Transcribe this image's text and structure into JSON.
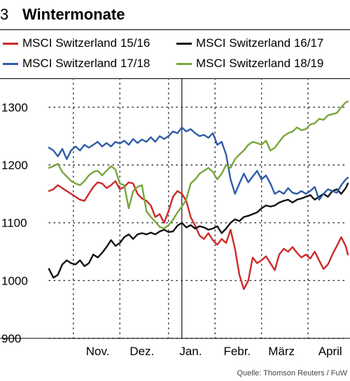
{
  "header": {
    "number": "3",
    "title": "Wintermonate"
  },
  "source": "Quelle: Thomson Reuters / FuW",
  "colors": {
    "red": "#cc2a2a",
    "black": "#111111",
    "blue": "#2f5da8",
    "green": "#78a63a"
  },
  "chart_data": {
    "type": "line",
    "title": "Wintermonate",
    "xlabel": "",
    "ylabel": "",
    "ylim": [
      900,
      1350
    ],
    "yticks": [
      900,
      1000,
      1100,
      1200,
      1300
    ],
    "xlim": [
      0,
      135
    ],
    "month_ticks": [
      {
        "label": "Nov.",
        "x": 22
      },
      {
        "label": "Dez.",
        "x": 42
      },
      {
        "label": "Jan.",
        "x": 64
      },
      {
        "label": "Febr.",
        "x": 85
      },
      {
        "label": "März",
        "x": 105
      },
      {
        "label": "April",
        "x": 127
      }
    ],
    "vgrid_x": [
      11,
      32,
      54,
      75,
      96,
      117
    ],
    "year_boundary_x": 60,
    "series": [
      {
        "name": "MSCI Switzerland 15/16",
        "color": "red",
        "points": [
          [
            0,
            1155
          ],
          [
            2,
            1158
          ],
          [
            4,
            1165
          ],
          [
            6,
            1160
          ],
          [
            8,
            1155
          ],
          [
            10,
            1150
          ],
          [
            12,
            1145
          ],
          [
            14,
            1140
          ],
          [
            16,
            1138
          ],
          [
            18,
            1150
          ],
          [
            20,
            1162
          ],
          [
            22,
            1170
          ],
          [
            24,
            1168
          ],
          [
            26,
            1160
          ],
          [
            28,
            1165
          ],
          [
            30,
            1172
          ],
          [
            32,
            1158
          ],
          [
            34,
            1162
          ],
          [
            36,
            1170
          ],
          [
            38,
            1168
          ],
          [
            40,
            1150
          ],
          [
            42,
            1142
          ],
          [
            44,
            1138
          ],
          [
            46,
            1130
          ],
          [
            48,
            1110
          ],
          [
            50,
            1115
          ],
          [
            52,
            1100
          ],
          [
            54,
            1120
          ],
          [
            56,
            1145
          ],
          [
            58,
            1155
          ],
          [
            60,
            1150
          ],
          [
            62,
            1138
          ],
          [
            64,
            1110
          ],
          [
            66,
            1095
          ],
          [
            68,
            1078
          ],
          [
            70,
            1072
          ],
          [
            72,
            1082
          ],
          [
            74,
            1070
          ],
          [
            76,
            1062
          ],
          [
            78,
            1072
          ],
          [
            80,
            1065
          ],
          [
            82,
            1088
          ],
          [
            84,
            1055
          ],
          [
            86,
            1010
          ],
          [
            88,
            985
          ],
          [
            90,
            1000
          ],
          [
            92,
            1040
          ],
          [
            94,
            1030
          ],
          [
            96,
            1035
          ],
          [
            98,
            1042
          ],
          [
            100,
            1030
          ],
          [
            102,
            1018
          ],
          [
            104,
            1045
          ],
          [
            106,
            1055
          ],
          [
            108,
            1050
          ],
          [
            110,
            1058
          ],
          [
            112,
            1048
          ],
          [
            114,
            1040
          ],
          [
            116,
            1045
          ],
          [
            118,
            1038
          ],
          [
            120,
            1050
          ],
          [
            122,
            1035
          ],
          [
            124,
            1020
          ],
          [
            126,
            1028
          ],
          [
            128,
            1045
          ],
          [
            130,
            1060
          ],
          [
            132,
            1075
          ],
          [
            134,
            1060
          ],
          [
            135,
            1045
          ]
        ]
      },
      {
        "name": "MSCI Switzerland 16/17",
        "color": "black",
        "points": [
          [
            0,
            1020
          ],
          [
            2,
            1005
          ],
          [
            4,
            1010
          ],
          [
            6,
            1028
          ],
          [
            8,
            1035
          ],
          [
            10,
            1030
          ],
          [
            12,
            1028
          ],
          [
            14,
            1035
          ],
          [
            16,
            1025
          ],
          [
            18,
            1030
          ],
          [
            20,
            1045
          ],
          [
            22,
            1040
          ],
          [
            24,
            1048
          ],
          [
            26,
            1058
          ],
          [
            28,
            1070
          ],
          [
            30,
            1060
          ],
          [
            32,
            1065
          ],
          [
            34,
            1075
          ],
          [
            36,
            1080
          ],
          [
            38,
            1072
          ],
          [
            40,
            1080
          ],
          [
            42,
            1082
          ],
          [
            44,
            1080
          ],
          [
            46,
            1083
          ],
          [
            48,
            1080
          ],
          [
            50,
            1085
          ],
          [
            52,
            1088
          ],
          [
            54,
            1084
          ],
          [
            56,
            1085
          ],
          [
            58,
            1095
          ],
          [
            60,
            1100
          ],
          [
            62,
            1092
          ],
          [
            64,
            1096
          ],
          [
            66,
            1090
          ],
          [
            68,
            1094
          ],
          [
            70,
            1092
          ],
          [
            72,
            1088
          ],
          [
            74,
            1090
          ],
          [
            76,
            1094
          ],
          [
            78,
            1082
          ],
          [
            80,
            1090
          ],
          [
            82,
            1100
          ],
          [
            84,
            1106
          ],
          [
            86,
            1103
          ],
          [
            88,
            1110
          ],
          [
            90,
            1112
          ],
          [
            92,
            1115
          ],
          [
            94,
            1118
          ],
          [
            96,
            1125
          ],
          [
            98,
            1130
          ],
          [
            100,
            1128
          ],
          [
            102,
            1130
          ],
          [
            104,
            1135
          ],
          [
            106,
            1138
          ],
          [
            108,
            1140
          ],
          [
            110,
            1135
          ],
          [
            112,
            1140
          ],
          [
            114,
            1142
          ],
          [
            116,
            1145
          ],
          [
            118,
            1148
          ],
          [
            120,
            1140
          ],
          [
            122,
            1145
          ],
          [
            124,
            1150
          ],
          [
            126,
            1145
          ],
          [
            128,
            1155
          ],
          [
            130,
            1158
          ],
          [
            132,
            1150
          ],
          [
            134,
            1160
          ],
          [
            135,
            1168
          ]
        ]
      },
      {
        "name": "MSCI Switzerland 17/18",
        "color": "blue",
        "points": [
          [
            0,
            1230
          ],
          [
            2,
            1225
          ],
          [
            4,
            1215
          ],
          [
            6,
            1228
          ],
          [
            8,
            1210
          ],
          [
            10,
            1225
          ],
          [
            12,
            1232
          ],
          [
            14,
            1225
          ],
          [
            16,
            1235
          ],
          [
            18,
            1230
          ],
          [
            20,
            1235
          ],
          [
            22,
            1240
          ],
          [
            24,
            1232
          ],
          [
            26,
            1238
          ],
          [
            28,
            1232
          ],
          [
            30,
            1240
          ],
          [
            32,
            1237
          ],
          [
            34,
            1242
          ],
          [
            36,
            1235
          ],
          [
            38,
            1245
          ],
          [
            40,
            1238
          ],
          [
            42,
            1244
          ],
          [
            44,
            1240
          ],
          [
            46,
            1248
          ],
          [
            48,
            1240
          ],
          [
            50,
            1250
          ],
          [
            52,
            1245
          ],
          [
            54,
            1250
          ],
          [
            56,
            1258
          ],
          [
            58,
            1255
          ],
          [
            60,
            1265
          ],
          [
            62,
            1258
          ],
          [
            64,
            1262
          ],
          [
            66,
            1255
          ],
          [
            68,
            1250
          ],
          [
            70,
            1252
          ],
          [
            72,
            1247
          ],
          [
            74,
            1255
          ],
          [
            76,
            1235
          ],
          [
            78,
            1240
          ],
          [
            80,
            1218
          ],
          [
            82,
            1175
          ],
          [
            84,
            1150
          ],
          [
            86,
            1168
          ],
          [
            88,
            1185
          ],
          [
            90,
            1170
          ],
          [
            92,
            1180
          ],
          [
            94,
            1190
          ],
          [
            96,
            1175
          ],
          [
            98,
            1182
          ],
          [
            100,
            1168
          ],
          [
            102,
            1150
          ],
          [
            104,
            1155
          ],
          [
            106,
            1150
          ],
          [
            108,
            1160
          ],
          [
            110,
            1152
          ],
          [
            112,
            1150
          ],
          [
            114,
            1155
          ],
          [
            116,
            1150
          ],
          [
            118,
            1155
          ],
          [
            120,
            1162
          ],
          [
            122,
            1140
          ],
          [
            124,
            1150
          ],
          [
            126,
            1158
          ],
          [
            128,
            1155
          ],
          [
            130,
            1152
          ],
          [
            132,
            1165
          ],
          [
            134,
            1175
          ],
          [
            135,
            1178
          ]
        ]
      },
      {
        "name": "MSCI Switzerland 18/19",
        "color": "green",
        "points": [
          [
            0,
            1195
          ],
          [
            2,
            1198
          ],
          [
            4,
            1202
          ],
          [
            6,
            1188
          ],
          [
            8,
            1180
          ],
          [
            10,
            1172
          ],
          [
            12,
            1168
          ],
          [
            14,
            1165
          ],
          [
            16,
            1172
          ],
          [
            18,
            1182
          ],
          [
            20,
            1188
          ],
          [
            22,
            1190
          ],
          [
            24,
            1182
          ],
          [
            26,
            1190
          ],
          [
            28,
            1198
          ],
          [
            30,
            1192
          ],
          [
            32,
            1168
          ],
          [
            34,
            1165
          ],
          [
            36,
            1125
          ],
          [
            38,
            1155
          ],
          [
            40,
            1162
          ],
          [
            42,
            1165
          ],
          [
            44,
            1120
          ],
          [
            46,
            1110
          ],
          [
            48,
            1102
          ],
          [
            50,
            1093
          ],
          [
            52,
            1090
          ],
          [
            54,
            1096
          ],
          [
            56,
            1105
          ],
          [
            58,
            1118
          ],
          [
            60,
            1128
          ],
          [
            62,
            1140
          ],
          [
            64,
            1168
          ],
          [
            66,
            1175
          ],
          [
            68,
            1185
          ],
          [
            70,
            1190
          ],
          [
            72,
            1195
          ],
          [
            74,
            1188
          ],
          [
            76,
            1175
          ],
          [
            78,
            1185
          ],
          [
            80,
            1200
          ],
          [
            82,
            1195
          ],
          [
            84,
            1210
          ],
          [
            86,
            1218
          ],
          [
            88,
            1225
          ],
          [
            90,
            1235
          ],
          [
            92,
            1240
          ],
          [
            94,
            1238
          ],
          [
            96,
            1235
          ],
          [
            98,
            1242
          ],
          [
            100,
            1225
          ],
          [
            102,
            1230
          ],
          [
            104,
            1240
          ],
          [
            106,
            1250
          ],
          [
            108,
            1255
          ],
          [
            110,
            1258
          ],
          [
            112,
            1265
          ],
          [
            114,
            1260
          ],
          [
            116,
            1262
          ],
          [
            118,
            1270
          ],
          [
            120,
            1272
          ],
          [
            122,
            1280
          ],
          [
            124,
            1278
          ],
          [
            126,
            1286
          ],
          [
            128,
            1288
          ],
          [
            130,
            1290
          ],
          [
            132,
            1300
          ],
          [
            134,
            1308
          ],
          [
            135,
            1310
          ]
        ]
      }
    ]
  }
}
